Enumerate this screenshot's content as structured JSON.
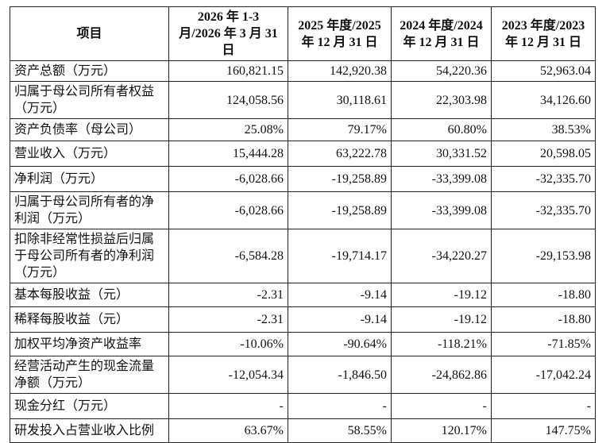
{
  "table": {
    "header": [
      "项目",
      "2026 年 1-3 月/2026 年 3 月 31 日",
      "2025 年度/2025 年 12 月 31 日",
      "2024 年度/2024 年 12 月 31 日",
      "2023 年度/2023 年 12 月 31 日"
    ],
    "rows": [
      [
        "资产总额（万元）",
        "160,821.15",
        "142,920.38",
        "54,220.36",
        "52,963.04"
      ],
      [
        "归属于母公司所有者权益（万元）",
        "124,058.56",
        "30,118.61",
        "22,303.98",
        "34,126.60"
      ],
      [
        "资产负债率（母公司）",
        "25.08%",
        "79.17%",
        "60.80%",
        "38.53%"
      ],
      [
        "营业收入（万元）",
        "15,444.28",
        "63,222.78",
        "30,331.52",
        "20,598.05"
      ],
      [
        "净利润（万元）",
        "-6,028.66",
        "-19,258.89",
        "-33,399.08",
        "-32,335.70"
      ],
      [
        "归属于母公司所有者的净利润（万元）",
        "-6,028.66",
        "-19,258.89",
        "-33,399.08",
        "-32,335.70"
      ],
      [
        "扣除非经常性损益后归属于母公司所有者的净利润（万元）",
        "-6,584.28",
        "-19,714.17",
        "-34,220.27",
        "-29,153.98"
      ],
      [
        "基本每股收益（元）",
        "-2.31",
        "-9.14",
        "-19.12",
        "-18.80"
      ],
      [
        "稀释每股收益（元）",
        "-2.31",
        "-9.14",
        "-19.12",
        "-18.80"
      ],
      [
        "加权平均净资产收益率",
        "-10.06%",
        "-90.64%",
        "-118.21%",
        "-71.85%"
      ],
      [
        "经营活动产生的现金流量净额（万元）",
        "-12,054.34",
        "-1,846.50",
        "-24,862.86",
        "-17,042.24"
      ],
      [
        "现金分红（万元）",
        "-",
        "-",
        "-",
        "-"
      ],
      [
        "研发投入占营业收入比例",
        "63.67%",
        "58.55%",
        "120.17%",
        "147.75%"
      ]
    ]
  }
}
